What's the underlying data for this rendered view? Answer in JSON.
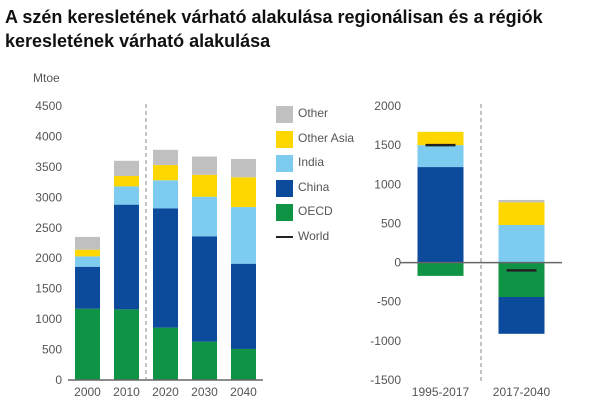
{
  "title": "A szén keresletének várható alakulása regionálisan és a régiók keresletének várható alakulása",
  "legend": [
    {
      "label": "Other",
      "color": "#c0c0c0",
      "kind": "box"
    },
    {
      "label": "Other Asia",
      "color": "#ffd700",
      "kind": "box"
    },
    {
      "label": "India",
      "color": "#7dcbef",
      "kind": "box"
    },
    {
      "label": "China",
      "color": "#0c4a9c",
      "kind": "box"
    },
    {
      "label": "OECD",
      "color": "#0f9446",
      "kind": "box"
    },
    {
      "label": "World",
      "color": "#222222",
      "kind": "line"
    }
  ],
  "chart_data": [
    {
      "type": "bar",
      "stacked": true,
      "ylabel": "Mtoe",
      "ylim": [
        0,
        4500
      ],
      "yticks": [
        0,
        500,
        1000,
        1500,
        2000,
        2500,
        3000,
        3500,
        4000,
        4500
      ],
      "categories": [
        "2000",
        "2010",
        "2020",
        "2030",
        "2040"
      ],
      "divider_after_index": 1,
      "grid": false,
      "series": [
        {
          "name": "OECD",
          "color": "#0f9446",
          "values": [
            1170,
            1160,
            860,
            630,
            510
          ]
        },
        {
          "name": "China",
          "color": "#0c4a9c",
          "values": [
            690,
            1720,
            1960,
            1730,
            1400
          ]
        },
        {
          "name": "India",
          "color": "#7dcbef",
          "values": [
            170,
            300,
            460,
            650,
            930
          ]
        },
        {
          "name": "Other Asia",
          "color": "#ffd700",
          "values": [
            110,
            170,
            250,
            360,
            490
          ]
        },
        {
          "name": "Other",
          "color": "#c0c0c0",
          "values": [
            210,
            250,
            250,
            300,
            300
          ]
        }
      ]
    },
    {
      "type": "bar",
      "stacked": true,
      "ylim": [
        -1500,
        2000
      ],
      "yticks": [
        -1500,
        -1000,
        -500,
        0,
        500,
        1000,
        1500,
        2000
      ],
      "categories": [
        "1995-2017",
        "2017-2040"
      ],
      "grid": false,
      "series": [
        {
          "name": "OECD",
          "color": "#0f9446",
          "values": [
            -170,
            -440
          ]
        },
        {
          "name": "China",
          "color": "#0c4a9c",
          "values": [
            1220,
            -470
          ]
        },
        {
          "name": "India",
          "color": "#7dcbef",
          "values": [
            280,
            480
          ]
        },
        {
          "name": "Other Asia",
          "color": "#ffd700",
          "values": [
            170,
            290
          ]
        },
        {
          "name": "Other",
          "color": "#c0c0c0",
          "values": [
            0,
            30
          ]
        }
      ],
      "world": [
        1500,
        -100
      ]
    }
  ]
}
